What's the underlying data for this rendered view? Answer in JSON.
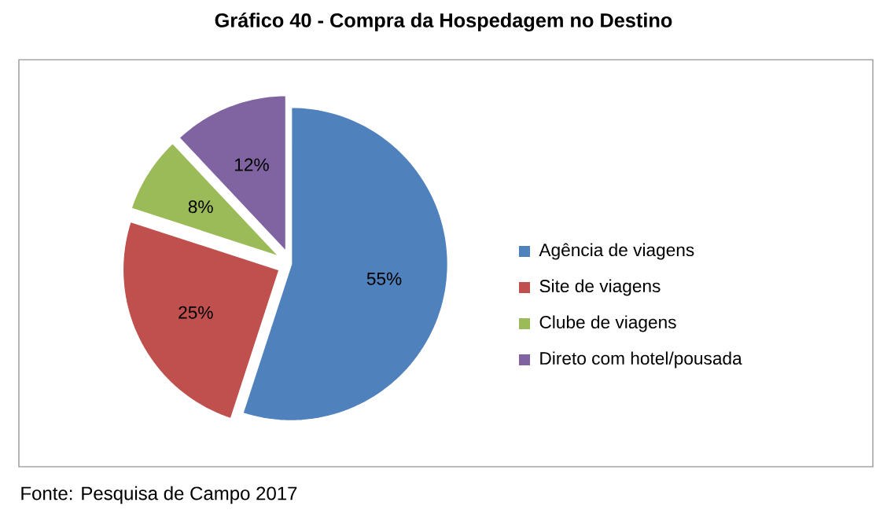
{
  "chart_data": {
    "type": "pie",
    "title": "Gráfico 40 - Compra da Hospedagem no Destino",
    "categories": [
      "Agência de viagens",
      "Site de viagens",
      "Clube de viagens",
      "Direto com hotel/pousada"
    ],
    "values": [
      55,
      25,
      8,
      12
    ],
    "value_labels": [
      "55%",
      "25%",
      "8%",
      "12%"
    ],
    "colors": [
      "#4f81bd",
      "#c0504d",
      "#9bbb59",
      "#8064a2"
    ],
    "legend": "right",
    "annotations": [
      "Fonte: Pesquisa de Campo 2017"
    ]
  }
}
